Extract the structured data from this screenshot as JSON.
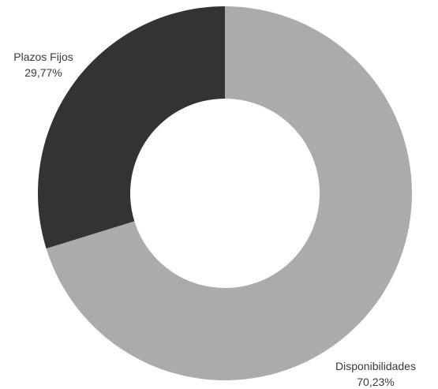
{
  "chart_data": {
    "type": "pie",
    "variant": "donut",
    "categories": [
      "Disponibilidades",
      "Plazos Fijos"
    ],
    "values": [
      70.23,
      29.77
    ],
    "value_labels": [
      "70,23%",
      "29,77%"
    ],
    "colors": [
      "#ababab",
      "#333333"
    ],
    "title": "",
    "legend": "none",
    "start_angle_deg": 0,
    "direction": "clockwise"
  },
  "colors": {
    "background": "#ffffff",
    "label_text": "#3a3a3a"
  }
}
